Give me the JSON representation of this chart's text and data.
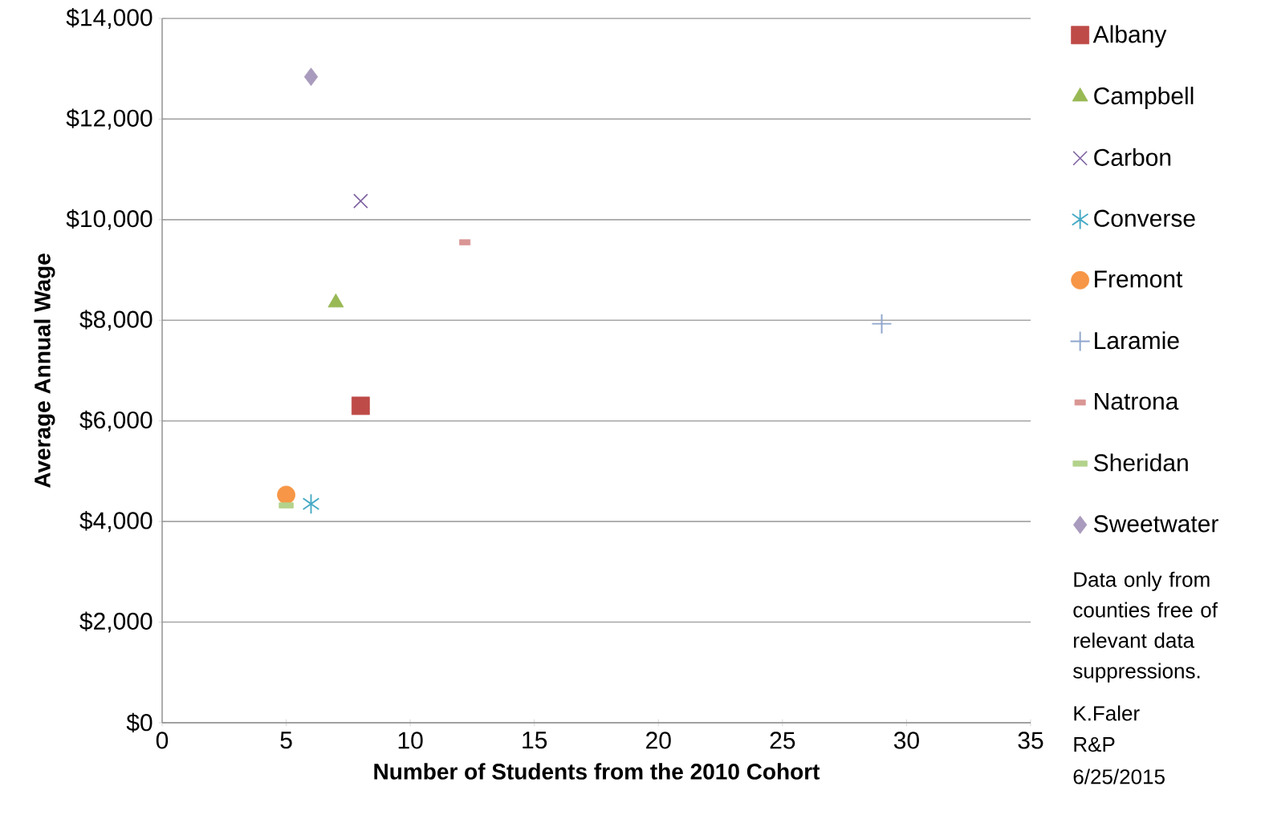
{
  "chart_data": {
    "type": "scatter",
    "xlabel": "Number of Students from the 2010 Cohort",
    "ylabel": "Average Annual Wage",
    "xlim": [
      0,
      35
    ],
    "xticks": [
      0,
      5,
      10,
      15,
      20,
      25,
      30,
      35
    ],
    "ylim": [
      0,
      14000
    ],
    "yticks": [
      {
        "value": 0,
        "label": "$0"
      },
      {
        "value": 2000,
        "label": "$2,000"
      },
      {
        "value": 4000,
        "label": "$4,000"
      },
      {
        "value": 6000,
        "label": "$6,000"
      },
      {
        "value": 8000,
        "label": "$8,000"
      },
      {
        "value": 10000,
        "label": "$10,000"
      },
      {
        "value": 12000,
        "label": "$12,000"
      },
      {
        "value": 14000,
        "label": "$14,000"
      }
    ],
    "grid": "y",
    "legend": "right",
    "series": [
      {
        "name": "Albany",
        "color": "#be4b48",
        "marker": "square",
        "x": [
          8
        ],
        "values": [
          6300
        ]
      },
      {
        "name": "Campbell",
        "color": "#98b954",
        "marker": "triangle",
        "x": [
          7
        ],
        "values": [
          8350
        ]
      },
      {
        "name": "Carbon",
        "color": "#7d60a0",
        "marker": "cross",
        "x": [
          8
        ],
        "values": [
          10370
        ]
      },
      {
        "name": "Converse",
        "color": "#46aac5",
        "marker": "star",
        "x": [
          6
        ],
        "values": [
          4350
        ]
      },
      {
        "name": "Fremont",
        "color": "#f69646",
        "marker": "circle",
        "x": [
          5
        ],
        "values": [
          4530
        ]
      },
      {
        "name": "Laramie",
        "color": "#8ea5cb",
        "marker": "cross",
        "x": [
          29
        ],
        "values": [
          7930
        ]
      },
      {
        "name": "Natrona",
        "color": "#d99694",
        "marker": "square",
        "x": [
          12.2
        ],
        "values": [
          9550
        ]
      },
      {
        "name": "Sheridan",
        "color": "#b3d28b",
        "marker": "square",
        "x": [
          5
        ],
        "values": [
          4320
        ]
      },
      {
        "name": "Sweetwater",
        "color": "#a99bbd",
        "marker": "diamond",
        "x": [
          6
        ],
        "values": [
          12840
        ]
      }
    ],
    "annotations": [
      "Data only from counties free of relevant data suppressions.",
      "K.Faler",
      "R&P",
      "6/25/2015"
    ]
  }
}
